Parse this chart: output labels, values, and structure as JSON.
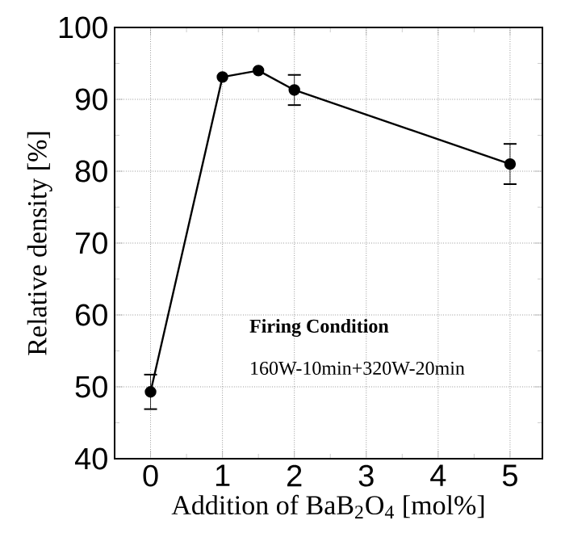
{
  "chart_data": {
    "type": "line",
    "xlabel": "Addition of BaB$_{2}$O$_{4}$ [mol%]",
    "ylabel": "Relative density [%]",
    "x": [
      0,
      1,
      1.5,
      2,
      5
    ],
    "series": [
      {
        "color": "#000000",
        "values": [
          49.3,
          93.1,
          94.0,
          91.3,
          81.0
        ],
        "errors": [
          2.4,
          null,
          null,
          2.1,
          2.8
        ]
      }
    ],
    "xlim": [
      -0.5,
      5.45
    ],
    "ylim": [
      40,
      100
    ],
    "xticks": [
      0,
      1,
      2,
      3,
      4,
      5
    ],
    "yticks": [
      40,
      50,
      60,
      70,
      80,
      90,
      100
    ],
    "grid": true,
    "marker": "circle",
    "line_style": "solid",
    "annotations": [
      {
        "text": "Firing Condition"
      },
      {
        "text": "160W-10min+320W-20min"
      }
    ]
  }
}
